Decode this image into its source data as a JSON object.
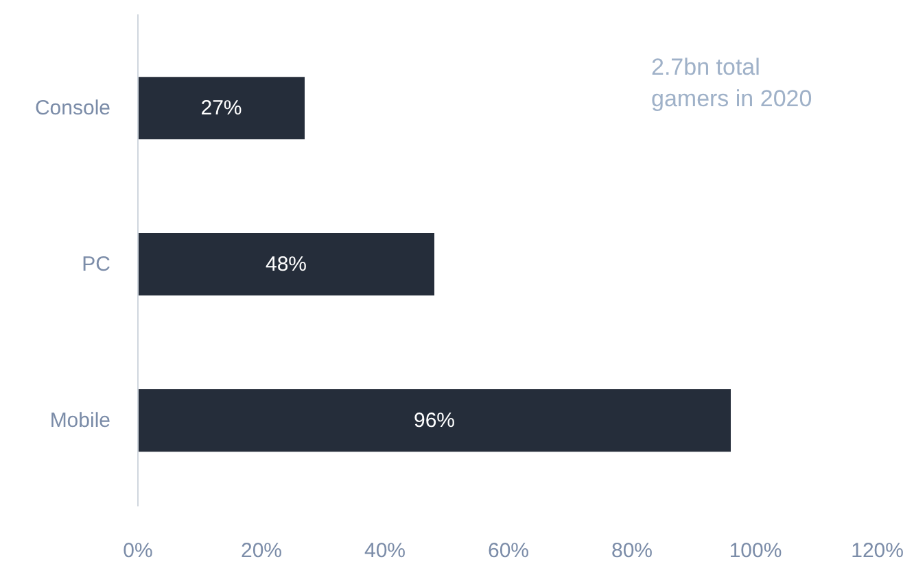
{
  "chart_data": {
    "type": "bar",
    "orientation": "horizontal",
    "categories": [
      "Console",
      "PC",
      "Mobile"
    ],
    "values": [
      27,
      48,
      96
    ],
    "value_labels": [
      "27%",
      "48%",
      "96%"
    ],
    "color": "#252d3a",
    "xlim": [
      0,
      120
    ],
    "xticks": [
      {
        "value": 0,
        "label": "0%"
      },
      {
        "value": 20,
        "label": "20%"
      },
      {
        "value": 40,
        "label": "40%"
      },
      {
        "value": 60,
        "label": "60%"
      },
      {
        "value": 80,
        "label": "80%"
      },
      {
        "value": 100,
        "label": "100%"
      },
      {
        "value": 120,
        "label": "120%"
      }
    ],
    "annotations": [
      "2.7bn total\ngamers in 2020"
    ],
    "grid": false
  }
}
